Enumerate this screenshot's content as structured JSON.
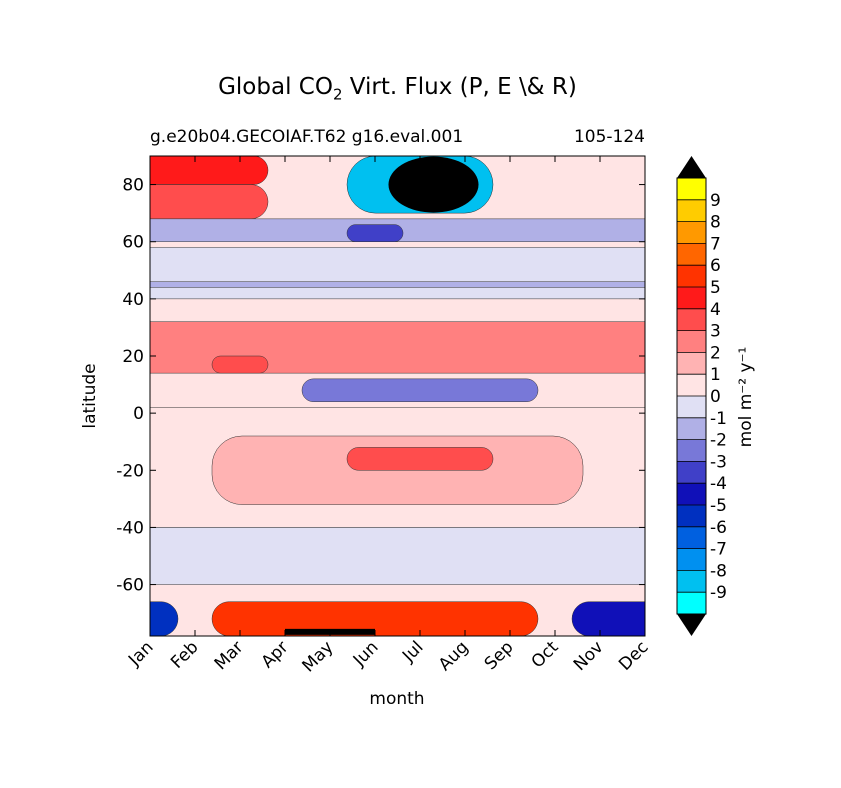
{
  "title": {
    "main": "Global CO",
    "sub": "2",
    "rest": " Virt. Flux (P, E \\& R)"
  },
  "subtitle_left": "g.e20b04.GECOIAF.T62 g16.eval.001",
  "subtitle_right": "105-124",
  "chart_data": {
    "type": "heatmap",
    "xlabel": "month",
    "ylabel": "latitude",
    "colorbar_label": "mol m⁻² y⁻¹",
    "x_categories": [
      "Jan",
      "Feb",
      "Mar",
      "Apr",
      "May",
      "Jun",
      "Jul",
      "Aug",
      "Sep",
      "Oct",
      "Nov",
      "Dec"
    ],
    "y_ticks": [
      "80",
      "60",
      "40",
      "20",
      "0",
      "-20",
      "-40",
      "-60"
    ],
    "y_tick_values": [
      80,
      60,
      40,
      20,
      0,
      -20,
      -40,
      -60
    ],
    "ylim": [
      -78,
      90
    ],
    "colorbar_levels": [
      "9",
      "8",
      "7",
      "6",
      "5",
      "4",
      "3",
      "2",
      "1",
      "0",
      "-1",
      "-2",
      "-3",
      "-4",
      "-5",
      "-6",
      "-7",
      "-8",
      "-9"
    ],
    "colorbar_colors": [
      "#ffff00",
      "#ffcc00",
      "#ff9900",
      "#ff6600",
      "#ff3300",
      "#ff1a1a",
      "#ff4d4d",
      "#ff8080",
      "#ffb3b3",
      "#ffe4e4",
      "#e0e0f4",
      "#b0b0e6",
      "#7878d8",
      "#4040c8",
      "#1010b8",
      "#0030c0",
      "#0060e0",
      "#0090f0",
      "#00c0f0",
      "#00ffff"
    ],
    "extend_low": "#000000",
    "extend_high": "#000000",
    "band_levels": [
      {
        "lat": [
          80,
          90
        ],
        "months": "Jan-Mar",
        "level": 4
      },
      {
        "lat": [
          68,
          80
        ],
        "months": "Jan-Mar",
        "level": 3
      },
      {
        "lat": [
          70,
          90
        ],
        "months": "Jun-Aug",
        "level": -9
      },
      {
        "lat": [
          60,
          68
        ],
        "months": "Jan-Dec",
        "level": -2
      },
      {
        "lat": [
          60,
          66
        ],
        "months": "Jun",
        "level": -4
      },
      {
        "lat": [
          40,
          58
        ],
        "months": "Jan-Dec",
        "level": -1
      },
      {
        "lat": [
          44,
          46
        ],
        "months": "Jan-Dec",
        "level": -2
      },
      {
        "lat": [
          14,
          32
        ],
        "months": "Jan-Dec",
        "level": 2
      },
      {
        "lat": [
          14,
          20
        ],
        "months": "Mar",
        "level": 3
      },
      {
        "lat": [
          4,
          12
        ],
        "months": "May-Sep",
        "level": -3
      },
      {
        "lat": [
          -40,
          2
        ],
        "months": "Jan-Dec",
        "level": 0
      },
      {
        "lat": [
          -32,
          -8
        ],
        "months": "Mar-Oct",
        "level": 1
      },
      {
        "lat": [
          -20,
          -12
        ],
        "months": "Jun-Aug",
        "level": 3
      },
      {
        "lat": [
          -60,
          -40
        ],
        "months": "Jan-Dec",
        "level": -1
      },
      {
        "lat": [
          -78,
          -66
        ],
        "months": "Mar-Sep",
        "level": 5
      },
      {
        "lat": [
          -78,
          -66
        ],
        "months": "Nov-Dec",
        "level": -5
      },
      {
        "lat": [
          -78,
          -66
        ],
        "months": "Jan",
        "level": -6
      }
    ]
  }
}
